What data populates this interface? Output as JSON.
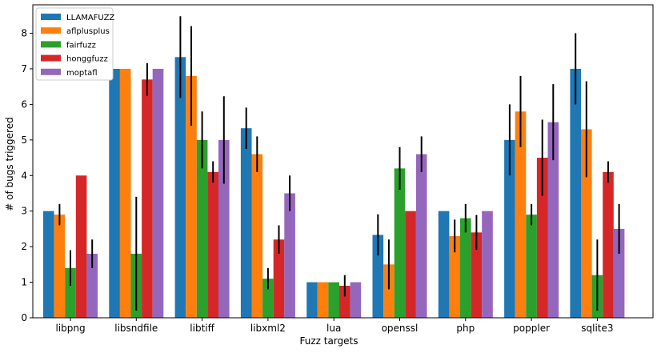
{
  "chart_data": {
    "type": "bar",
    "title": "",
    "xlabel": "Fuzz targets",
    "ylabel": "# of bugs triggered",
    "ylim": [
      0,
      8.8
    ],
    "yticks": [
      0,
      1,
      2,
      3,
      4,
      5,
      6,
      7,
      8
    ],
    "legend_position": "top-left",
    "categories": [
      "libpng",
      "libsndfile",
      "libtiff",
      "libxml2",
      "lua",
      "openssl",
      "php",
      "poppler",
      "sqlite3"
    ],
    "series": [
      {
        "name": "LLAMAFUZZ",
        "color": "#1f77b4",
        "values": [
          3.0,
          7.0,
          7.33,
          5.33,
          1.0,
          2.33,
          3.0,
          5.0,
          7.0
        ],
        "errors": [
          0,
          0,
          1.15,
          0.58,
          0,
          0.58,
          0,
          1.0,
          1.0
        ]
      },
      {
        "name": "aflplusplus",
        "color": "#ff7f0e",
        "values": [
          2.9,
          7.0,
          6.8,
          4.6,
          1.0,
          1.5,
          2.3,
          5.8,
          5.3
        ],
        "errors": [
          0.3,
          0,
          1.4,
          0.5,
          0,
          0.7,
          0.46,
          1.0,
          1.35
        ]
      },
      {
        "name": "fairfuzz",
        "color": "#2ca02c",
        "values": [
          1.4,
          1.8,
          5.0,
          1.1,
          1.0,
          4.2,
          2.8,
          2.9,
          1.2
        ],
        "errors": [
          0.5,
          1.6,
          0.8,
          0.3,
          0,
          0.6,
          0.4,
          0.3,
          1.0
        ]
      },
      {
        "name": "honggfuzz",
        "color": "#d62728",
        "values": [
          4.0,
          6.7,
          4.1,
          2.2,
          0.9,
          3.0,
          2.4,
          4.5,
          4.1
        ],
        "errors": [
          0,
          0.46,
          0.3,
          0.4,
          0.3,
          0,
          0.49,
          1.07,
          0.3
        ]
      },
      {
        "name": "moptafl",
        "color": "#9467bd",
        "values": [
          1.8,
          7.0,
          5.0,
          3.5,
          1.0,
          4.6,
          3.0,
          5.5,
          2.5
        ],
        "errors": [
          0.4,
          0,
          1.23,
          0.5,
          0,
          0.5,
          0,
          1.07,
          0.7
        ]
      }
    ]
  }
}
